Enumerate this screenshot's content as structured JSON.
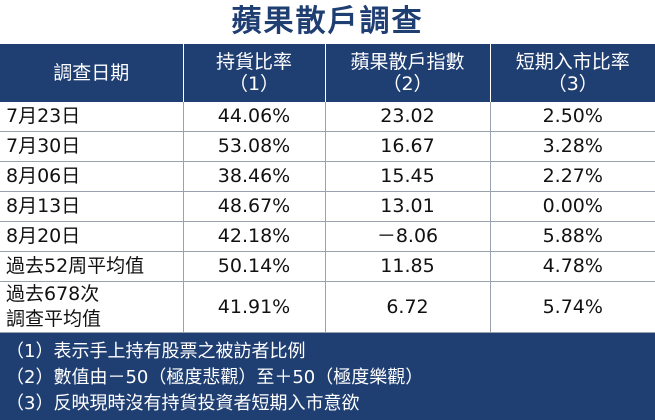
{
  "title": "蘋果散戶調查",
  "table": {
    "header": [
      "調查日期",
      "持貨比率\n（1）",
      "蘋果散戶指數\n（2）",
      "短期入市比率\n（3）"
    ],
    "rows": [
      [
        "7月23日",
        "44.06%",
        "23.02",
        "2.50%"
      ],
      [
        "7月30日",
        "53.08%",
        "16.67",
        "3.28%"
      ],
      [
        "8月06日",
        "38.46%",
        "15.45",
        "2.27%"
      ],
      [
        "8月13日",
        "48.67%",
        "13.01",
        "0.00%"
      ],
      [
        "8月20日",
        "42.18%",
        "－8.06",
        "5.88%"
      ],
      [
        "過去52周平均值",
        "50.14%",
        "11.85",
        "4.78%"
      ],
      [
        "過去678次\n調查平均值",
        "41.91%",
        "6.72",
        "5.74%"
      ]
    ]
  },
  "notes": [
    "（1）表示手上持有股票之被訪者比例",
    "（2）數值由－50（極度悲觀）至＋50（極度樂觀）",
    "（3）反映現時沒有持貨投資者短期入市意欲"
  ]
}
